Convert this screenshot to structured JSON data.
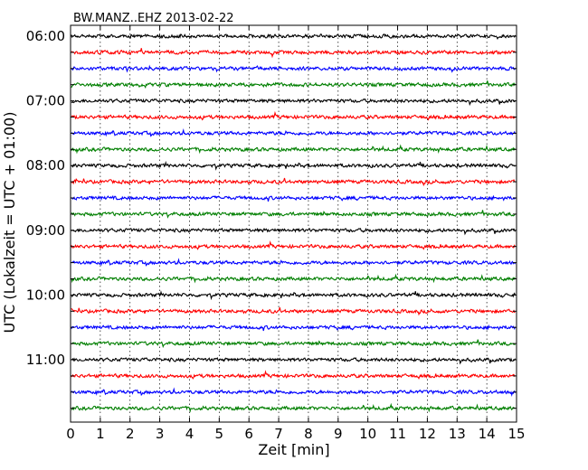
{
  "chart_data": {
    "type": "line",
    "title": "BW.MANZ..EHZ 2013-02-22",
    "xlabel": "Zeit  [min]",
    "ylabel": "UTC (Lokalzeit = UTC + 01:00)",
    "xlim": [
      0,
      15
    ],
    "x_ticks": [
      0,
      1,
      2,
      3,
      4,
      5,
      6,
      7,
      8,
      9,
      10,
      11,
      12,
      13,
      14,
      15
    ],
    "y_tick_labels": [
      "06:00",
      "07:00",
      "08:00",
      "09:00",
      "10:00",
      "11:00"
    ],
    "grid": "vertical dotted",
    "trace_colors": [
      "#000000",
      "#ff0000",
      "#0000ff",
      "#007f00"
    ],
    "trace_start_times": [
      "06:00",
      "06:15",
      "06:30",
      "06:45",
      "07:00",
      "07:15",
      "07:30",
      "07:45",
      "08:00",
      "08:15",
      "08:30",
      "08:45",
      "09:00",
      "09:15",
      "09:30",
      "09:45",
      "10:00",
      "10:15",
      "10:30",
      "10:45",
      "11:00",
      "11:15",
      "11:30",
      "11:45"
    ]
  }
}
